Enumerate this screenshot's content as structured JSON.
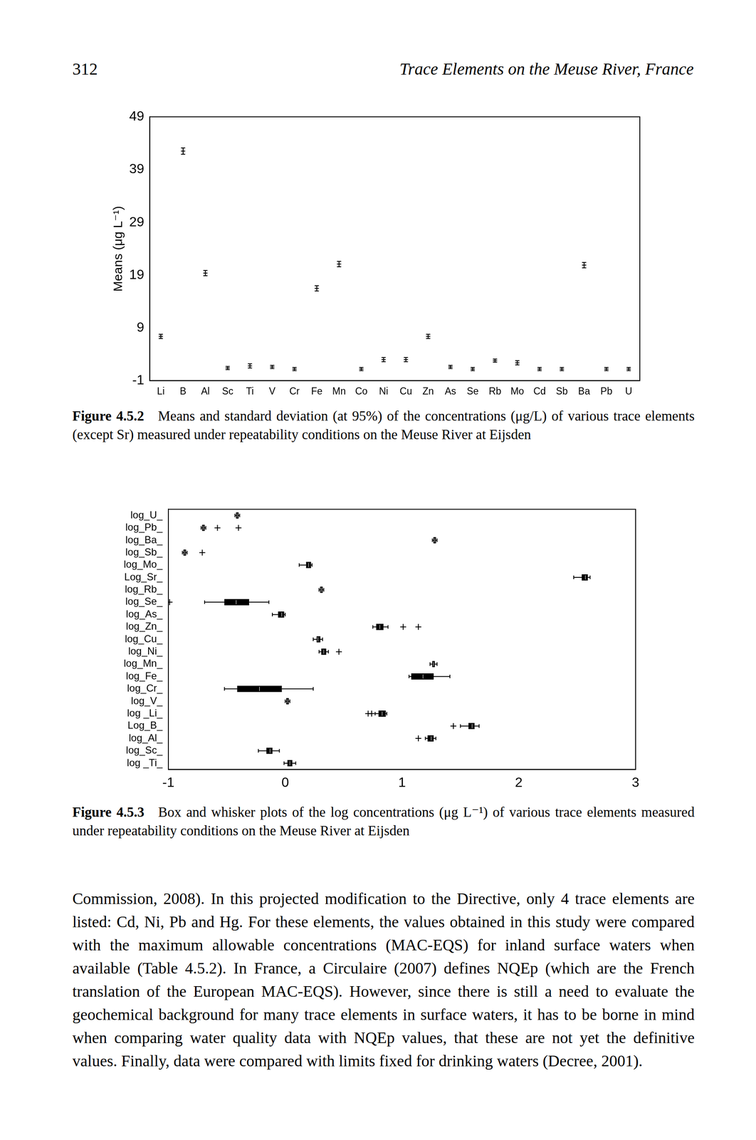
{
  "page": {
    "number": "312",
    "running_title": "Trace Elements on the Meuse River, France",
    "body": "Commission, 2008). In this projected modification to the Directive, only 4 trace elements are listed: Cd, Ni, Pb and Hg. For these elements, the values obtained in this study were compared with the maximum allowable concentrations (MAC-EQS) for inland surface waters when available (Table 4.5.2). In France, a Circulaire (2007) defines NQEp (which are the French translation of the European MAC-EQS). However, since there is still a need to evaluate the geochemical background for many trace elements in surface waters, it has to be borne in mind when comparing water quality data with NQEp values, that these are not yet the definitive values. Finally, data were compared with limits fixed for drinking waters (Decree, 2001)."
  },
  "chart_data": [
    {
      "type": "scatter",
      "caption": {
        "label": "Figure 4.5.2",
        "text": "Means and standard deviation (at 95%) of the concentrations (μg/L) of various trace elements (except Sr) measured under repeatability conditions on the Meuse River at Eijsden"
      },
      "y_label": "Means (μg L⁻¹)",
      "categories": [
        "Li",
        "B",
        "Al",
        "Sc",
        "Ti",
        "V",
        "Cr",
        "Fe",
        "Mn",
        "Co",
        "Ni",
        "Cu",
        "Zn",
        "As",
        "Se",
        "Rb",
        "Mo",
        "Cd",
        "Sb",
        "Ba",
        "Pb",
        "U"
      ],
      "values": [
        7.4,
        42.5,
        19.4,
        1.4,
        1.8,
        1.6,
        1.2,
        16.5,
        21.1,
        1.2,
        3.0,
        3.0,
        7.4,
        1.6,
        1.2,
        2.8,
        2.4,
        1.2,
        1.2,
        20.9,
        1.2,
        1.2
      ],
      "errors": [
        0.4,
        0.6,
        0.5,
        0.3,
        0.4,
        0.3,
        0.3,
        0.5,
        0.5,
        0.3,
        0.4,
        0.4,
        0.4,
        0.3,
        0.3,
        0.3,
        0.4,
        0.3,
        0.3,
        0.5,
        0.3,
        0.3
      ],
      "color": "#000000",
      "marker": "dash",
      "ylim": [
        -1,
        49
      ],
      "yticks": [
        -1,
        9,
        19,
        29,
        39,
        49
      ],
      "grid": false
    },
    {
      "type": "boxplot",
      "orientation": "horizontal",
      "caption": {
        "label": "Figure 4.5.3",
        "text": "Box and whisker plots of the log concentrations (μg L⁻¹) of various trace elements measured under repeatability conditions on the Meuse River at Eijsden"
      },
      "categories": [
        "log_U_",
        "log_Pb_",
        "log_Ba_",
        "log_Sb_",
        "log_Mo_",
        "Log_Sr_",
        "log_Rb_",
        "log_Se_",
        "log_As_",
        "log_Zn_",
        "log_Cu_",
        "log_Ni_",
        "log_Mn_",
        "log_Fe_",
        "log_Cr_",
        "log_V_",
        "log _Li_",
        "Log_B_",
        "log_Al_",
        "log_Sc_",
        "log _Ti_"
      ],
      "boxes": [
        {
          "min": -0.43,
          "q1": -0.42,
          "median": -0.41,
          "q3": -0.4,
          "max": -0.39,
          "outliers": []
        },
        {
          "min": -0.72,
          "q1": -0.71,
          "median": -0.7,
          "q3": -0.69,
          "max": -0.68,
          "outliers": [
            -0.58,
            -0.4
          ]
        },
        {
          "min": 1.26,
          "q1": 1.27,
          "median": 1.28,
          "q3": 1.29,
          "max": 1.3,
          "outliers": []
        },
        {
          "min": -0.88,
          "q1": -0.87,
          "median": -0.86,
          "q3": -0.85,
          "max": -0.84,
          "outliers": [
            -0.71
          ]
        },
        {
          "min": 0.12,
          "q1": 0.18,
          "median": 0.2,
          "q3": 0.22,
          "max": 0.23,
          "outliers": []
        },
        {
          "min": 2.47,
          "q1": 2.54,
          "median": 2.57,
          "q3": 2.59,
          "max": 2.61,
          "outliers": []
        },
        {
          "min": 0.29,
          "q1": 0.3,
          "median": 0.31,
          "q3": 0.32,
          "max": 0.33,
          "outliers": []
        },
        {
          "min": -0.69,
          "q1": -0.52,
          "median": -0.42,
          "q3": -0.31,
          "max": -0.14,
          "outliers": [
            -0.99
          ]
        },
        {
          "min": -0.11,
          "q1": -0.06,
          "median": -0.03,
          "q3": -0.01,
          "max": 0.0,
          "outliers": []
        },
        {
          "min": 0.75,
          "q1": 0.78,
          "median": 0.81,
          "q3": 0.84,
          "max": 0.88,
          "outliers": [
            1.01,
            1.14
          ]
        },
        {
          "min": 0.24,
          "q1": 0.27,
          "median": 0.28,
          "q3": 0.3,
          "max": 0.32,
          "outliers": []
        },
        {
          "min": 0.29,
          "q1": 0.31,
          "median": 0.33,
          "q3": 0.35,
          "max": 0.37,
          "outliers": [
            0.46
          ]
        },
        {
          "min": 1.24,
          "q1": 1.26,
          "median": 1.27,
          "q3": 1.28,
          "max": 1.3,
          "outliers": []
        },
        {
          "min": 1.06,
          "q1": 1.08,
          "median": 1.18,
          "q3": 1.27,
          "max": 1.41,
          "outliers": []
        },
        {
          "min": -0.52,
          "q1": -0.41,
          "median": -0.22,
          "q3": -0.03,
          "max": 0.24,
          "outliers": []
        },
        {
          "min": 0.0,
          "q1": 0.01,
          "median": 0.02,
          "q3": 0.03,
          "max": 0.04,
          "outliers": []
        },
        {
          "min": 0.77,
          "q1": 0.8,
          "median": 0.83,
          "q3": 0.86,
          "max": 0.87,
          "outliers": [
            0.71,
            0.74
          ]
        },
        {
          "min": 1.5,
          "q1": 1.57,
          "median": 1.6,
          "q3": 1.62,
          "max": 1.66,
          "outliers": [
            1.44
          ]
        },
        {
          "min": 1.2,
          "q1": 1.22,
          "median": 1.25,
          "q3": 1.27,
          "max": 1.29,
          "outliers": [
            1.14
          ]
        },
        {
          "min": -0.23,
          "q1": -0.16,
          "median": -0.13,
          "q3": -0.11,
          "max": -0.05,
          "outliers": []
        },
        {
          "min": -0.01,
          "q1": 0.02,
          "median": 0.04,
          "q3": 0.06,
          "max": 0.09,
          "outliers": []
        }
      ],
      "color": "#000000",
      "xlim": [
        -1,
        3
      ],
      "xticks": [
        -1,
        0,
        1,
        2,
        3
      ],
      "grid": false
    }
  ]
}
